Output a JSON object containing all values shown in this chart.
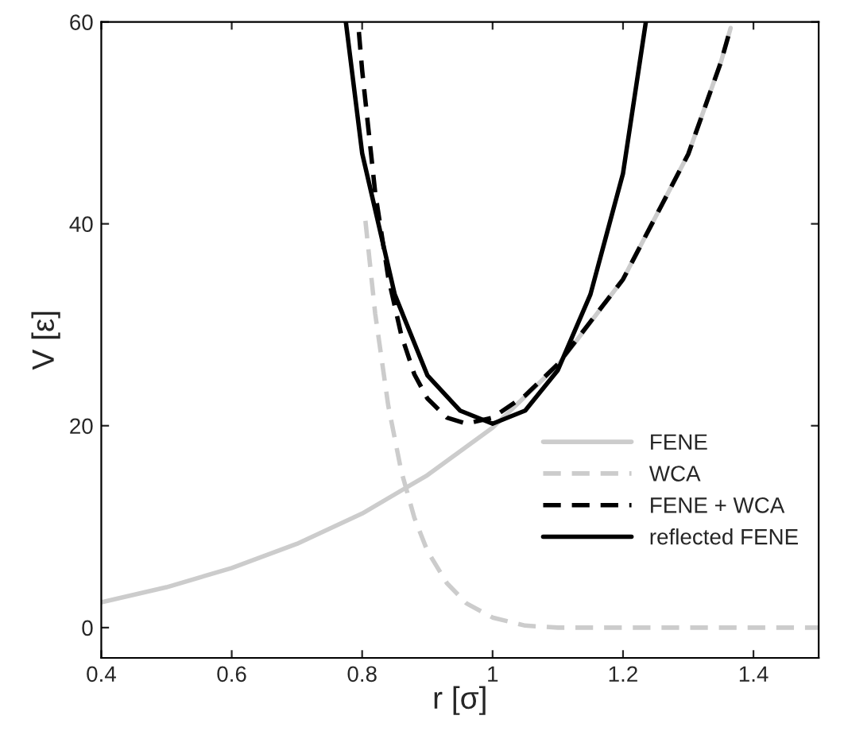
{
  "chart_data": {
    "type": "line",
    "xlabel": "r [σ]",
    "ylabel": "V [ε]",
    "xlim": [
      0.4,
      1.5
    ],
    "ylim": [
      -3,
      60
    ],
    "xticks": [
      0.4,
      0.6,
      0.8,
      1,
      1.2,
      1.4
    ],
    "yticks": [
      0,
      20,
      40,
      60
    ],
    "grid": false,
    "legend": "bottom right",
    "series": [
      {
        "name": "FENE",
        "color": "#cccccc",
        "line_style": "solid",
        "x": [
          0.4,
          0.5,
          0.6,
          0.7,
          0.8,
          0.9,
          1.0,
          1.1,
          1.2,
          1.3,
          1.35,
          1.365
        ],
        "values": [
          2.5,
          4,
          5.9,
          8.3,
          11.3,
          15.1,
          19.8,
          26,
          34.5,
          46.9,
          56,
          59.4
        ]
      },
      {
        "name": "WCA",
        "color": "#cccccc",
        "line_style": "dashed",
        "x": [
          0.805,
          0.82,
          0.84,
          0.86,
          0.88,
          0.9,
          0.93,
          0.96,
          1.0,
          1.05,
          1.1,
          1.1225,
          1.5
        ],
        "values": [
          40.3,
          31.1,
          22,
          15.5,
          10.9,
          7.6,
          4.4,
          2.4,
          1,
          0.2,
          0,
          0,
          0
        ]
      },
      {
        "name": "FENE + WCA",
        "color": "#000000",
        "line_style": "dashed",
        "x": [
          0.795,
          0.8,
          0.82,
          0.84,
          0.86,
          0.88,
          0.9,
          0.93,
          0.96,
          1.0,
          1.05,
          1.1,
          1.2,
          1.3,
          1.35,
          1.365
        ],
        "values": [
          59,
          55.2,
          43.1,
          34.7,
          29,
          25.1,
          22.7,
          20.8,
          20.2,
          20.8,
          23,
          26.1,
          34.5,
          46.9,
          56,
          59.4
        ]
      },
      {
        "name": "reflected FENE",
        "color": "#000000",
        "line_style": "solid",
        "x": [
          0.775,
          0.8,
          0.85,
          0.9,
          0.95,
          1.0,
          1.05,
          1.1,
          1.15,
          1.2,
          1.235
        ],
        "values": [
          60,
          47,
          33,
          25,
          21.5,
          20.2,
          21.5,
          25.5,
          33,
          45,
          60
        ]
      }
    ]
  }
}
